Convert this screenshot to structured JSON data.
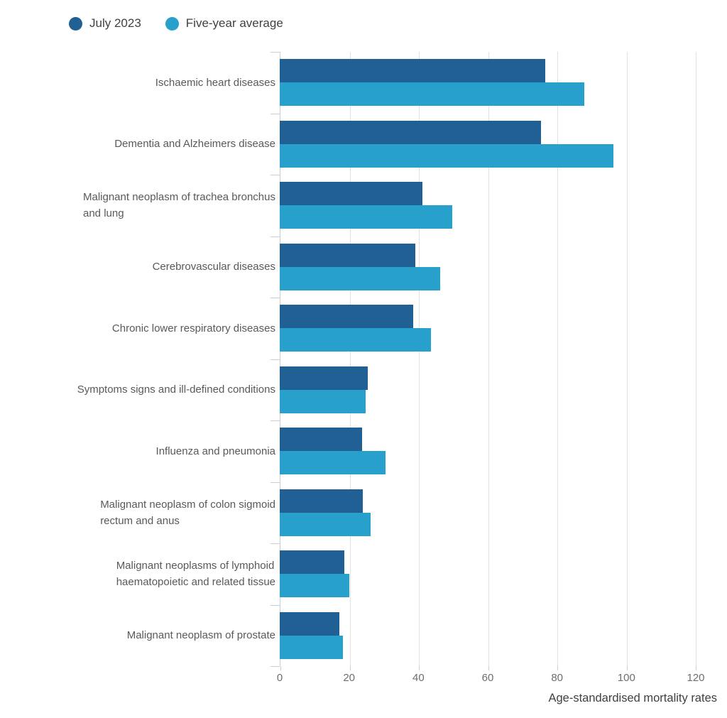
{
  "legend": {
    "items": [
      {
        "label": "July 2023",
        "color": "#206095"
      },
      {
        "label": "Five-year average",
        "color": "#27A0CC"
      }
    ]
  },
  "colors": {
    "gridline": "#e1e1e1",
    "axis_line": "#c9ced3",
    "category_label": "#595959",
    "tick_label": "#6d6d6d",
    "axis_title": "#414042",
    "legend_text": "#414042"
  },
  "chart_data": {
    "type": "bar",
    "orientation": "horizontal",
    "xlabel": "Age-standardised mortality rates",
    "xlim": [
      0,
      120
    ],
    "x_ticks": [
      0,
      20,
      40,
      60,
      80,
      100,
      120
    ],
    "grid": "vertical",
    "legend_position": "top-left",
    "categories": [
      "Ischaemic heart diseases",
      "Dementia and Alzheimers disease",
      "Malignant neoplasm of trachea bronchus and lung",
      "Cerebrovascular diseases",
      "Chronic lower respiratory diseases",
      "Symptoms signs and ill-defined conditions",
      "Influenza and pneumonia",
      "Malignant neoplasm of colon sigmoid rectum and anus",
      "Malignant neoplasms of lymphoid haematopoietic and related tissue",
      "Malignant neoplasm of prostate"
    ],
    "category_lines": [
      [
        "Ischaemic heart diseases"
      ],
      [
        "Dementia and Alzheimers disease"
      ],
      [
        "Malignant neoplasm of trachea bronchus",
        "and lung"
      ],
      [
        "Cerebrovascular diseases"
      ],
      [
        "Chronic lower respiratory diseases"
      ],
      [
        "Symptoms signs and ill-defined conditions"
      ],
      [
        "Influenza and pneumonia"
      ],
      [
        "Malignant neoplasm of colon sigmoid",
        "rectum and anus"
      ],
      [
        "Malignant neoplasms of lymphoid",
        "haematopoietic and related tissue"
      ],
      [
        "Malignant neoplasm of prostate"
      ]
    ],
    "series": [
      {
        "name": "July 2023",
        "color": "#206095",
        "values": [
          76.5,
          75.3,
          41.1,
          39.2,
          38.4,
          25.3,
          23.7,
          23.9,
          18.6,
          17.2
        ]
      },
      {
        "name": "Five-year average",
        "color": "#27A0CC",
        "values": [
          87.8,
          96.2,
          49.7,
          46.2,
          43.7,
          24.8,
          30.5,
          26.2,
          20.0,
          18.3
        ]
      }
    ]
  }
}
